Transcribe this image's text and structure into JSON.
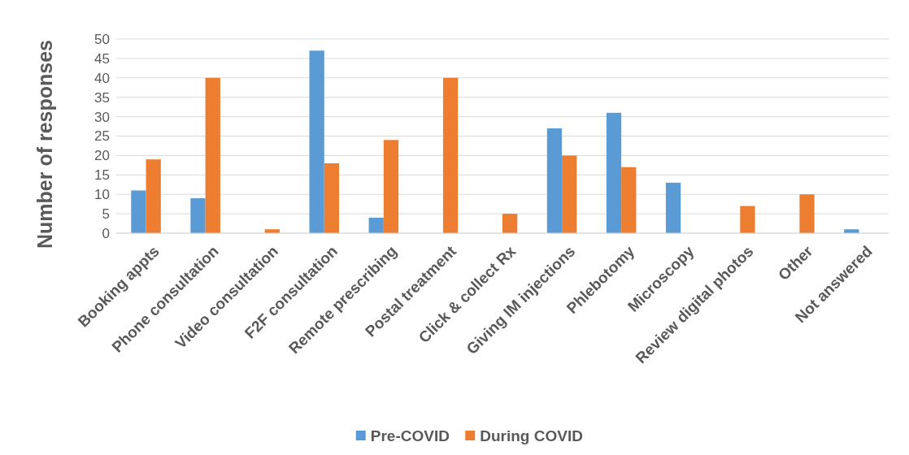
{
  "chart_data": {
    "type": "bar",
    "ylabel": "Number of responses",
    "categories": [
      "Booking appts",
      "Phone consultation",
      "Video consultation",
      "F2F consultation",
      "Remote prescribing",
      "Postal treatment",
      "Click & collect Rx",
      "Giving IM injections",
      "Phlebotomy",
      "Microscopy",
      "Review digital photos",
      "Other",
      "Not answered"
    ],
    "series": [
      {
        "name": "Pre-COVID",
        "color": "#5b9bd5",
        "values": [
          11,
          9,
          0,
          47,
          4,
          0,
          0,
          27,
          31,
          13,
          0,
          0,
          1
        ]
      },
      {
        "name": "During COVID",
        "color": "#ed7d31",
        "values": [
          19,
          40,
          1,
          18,
          24,
          40,
          5,
          20,
          17,
          0,
          7,
          10,
          0
        ]
      }
    ],
    "ylim": [
      0,
      50
    ],
    "yticks": [
      0,
      5,
      10,
      15,
      20,
      25,
      30,
      35,
      40,
      45,
      50
    ],
    "grid": "y",
    "legend": "bottom"
  }
}
